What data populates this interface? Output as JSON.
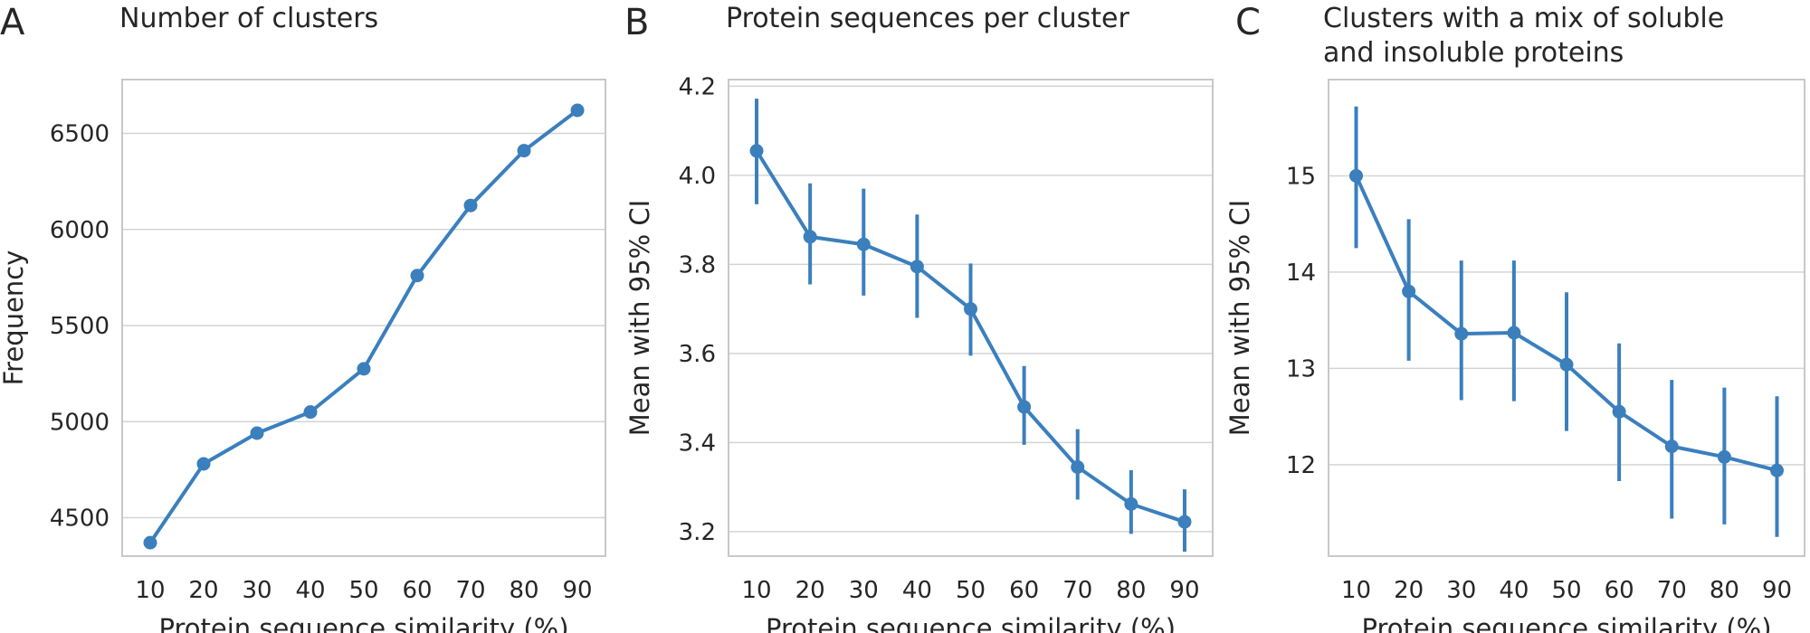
{
  "figure": {
    "accent_color": "#3b7fbd",
    "grid": true
  },
  "chart_data": [
    {
      "type": "line",
      "letter": "A",
      "title": "Number of clusters",
      "title_line2": "",
      "xlabel": "Protein sequence similarity (%)",
      "ylabel": "Frequency",
      "x": [
        10,
        20,
        30,
        40,
        50,
        60,
        70,
        80,
        90
      ],
      "values": [
        4370,
        4780,
        4940,
        5050,
        5275,
        5760,
        6125,
        6410,
        6620
      ],
      "ylim": [
        4300,
        6780
      ],
      "yticks": [
        4500,
        5000,
        5500,
        6000,
        6500
      ],
      "yticks_text": [
        "4500",
        "5000",
        "5500",
        "6000",
        "6500"
      ]
    },
    {
      "type": "line",
      "letter": "B",
      "title": "Protein sequences per cluster",
      "title_line2": "",
      "xlabel": "Protein sequence similarity (%)",
      "ylabel": "Mean with 95% CI",
      "x": [
        10,
        20,
        30,
        40,
        50,
        60,
        70,
        80,
        90
      ],
      "values": [
        4.055,
        3.862,
        3.845,
        3.795,
        3.7,
        3.48,
        3.345,
        3.262,
        3.222
      ],
      "ci_low": [
        3.935,
        3.755,
        3.73,
        3.68,
        3.595,
        3.395,
        3.272,
        3.195,
        3.155
      ],
      "ci_high": [
        4.172,
        3.982,
        3.97,
        3.912,
        3.802,
        3.572,
        3.43,
        3.338,
        3.295
      ],
      "ylim": [
        3.145,
        4.215
      ],
      "yticks": [
        3.2,
        3.4,
        3.6,
        3.8,
        4.0,
        4.2
      ],
      "yticks_text": [
        "3.2",
        "3.4",
        "3.6",
        "3.8",
        "4.0",
        "4.2"
      ]
    },
    {
      "type": "line",
      "letter": "C",
      "title": "Clusters with a mix of soluble",
      "title_line2": "and insoluble proteins",
      "xlabel": "Protein sequence similarity (%)",
      "ylabel": "Mean with 95% CI",
      "x": [
        10,
        20,
        30,
        40,
        50,
        60,
        70,
        80,
        90
      ],
      "values": [
        15.0,
        13.8,
        13.36,
        13.37,
        13.04,
        12.55,
        12.19,
        12.08,
        11.94
      ],
      "ci_low": [
        14.25,
        13.08,
        12.67,
        12.66,
        12.35,
        11.83,
        11.44,
        11.38,
        11.25
      ],
      "ci_high": [
        15.72,
        14.55,
        14.12,
        14.12,
        13.79,
        13.26,
        12.88,
        12.8,
        12.71
      ],
      "ylim": [
        11.05,
        16.0
      ],
      "yticks": [
        12,
        13,
        14,
        15
      ],
      "yticks_text": [
        "12",
        "13",
        "14",
        "15"
      ]
    }
  ]
}
